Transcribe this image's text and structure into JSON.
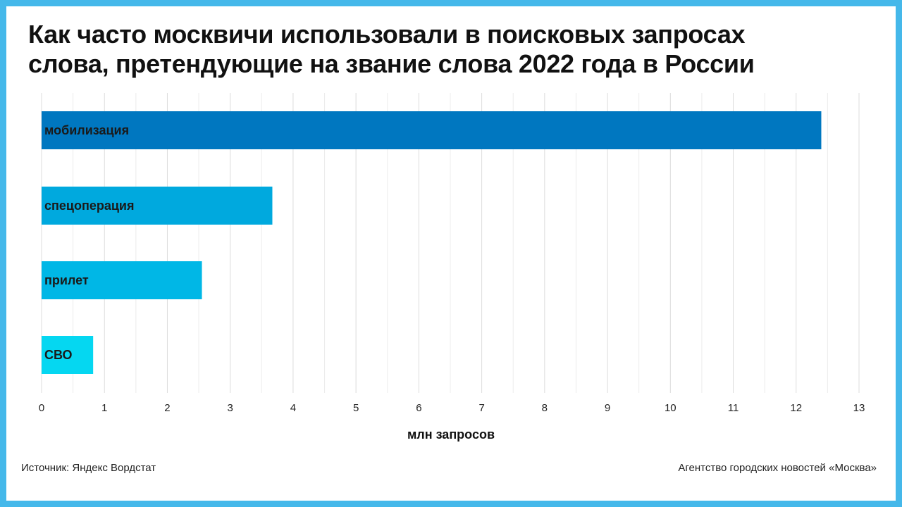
{
  "title_lines": [
    "Как часто москвичи использовали в поисковых запросах",
    "слова, претендующие на звание слова 2022 года в России"
  ],
  "source": "Источник: Яндекс Вордстат",
  "credit": "Агентство городских новостей «Москва»",
  "colors": {
    "background_frame": "#45b8ea",
    "bar_1": "#0077c0",
    "bar_2": "#00a9de",
    "bar_3": "#00b7e6",
    "bar_4": "#05d7f1"
  },
  "chart_data": {
    "type": "bar",
    "orientation": "horizontal",
    "categories": [
      "мобилизация",
      "спецоперация",
      "прилет",
      "СВО"
    ],
    "values": [
      12.4,
      3.67,
      2.55,
      0.82
    ],
    "xlabel": "млн запросов",
    "ylabel": "",
    "xlim": [
      0,
      13
    ],
    "xticks": [
      "0",
      "1",
      "2",
      "3",
      "4",
      "5",
      "6",
      "7",
      "8",
      "9",
      "10",
      "11",
      "12",
      "13"
    ],
    "grid": true,
    "legend": "none"
  }
}
